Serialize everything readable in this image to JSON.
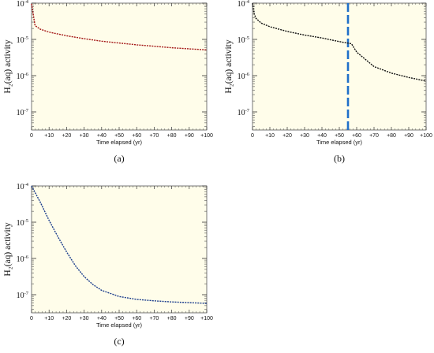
{
  "chart_data": [
    {
      "type": "line",
      "panel_label": "(a)",
      "xlabel": "Time elapsed (yr)",
      "ylabel": "H₂(aq) activity",
      "xlim": [
        0,
        100
      ],
      "ylim_log10": [
        -7.5,
        -4
      ],
      "scale_y": "log",
      "background": "#fffdea",
      "x_ticks": [
        0,
        10,
        20,
        30,
        40,
        50,
        60,
        70,
        80,
        90,
        100
      ],
      "x_tick_labels": [
        "0",
        "+10",
        "+20",
        "+30",
        "+40",
        "+50",
        "+60",
        "+70",
        "+80",
        "+90",
        "+100"
      ],
      "y_ticks": [
        -4,
        -5,
        -6,
        -7
      ],
      "series": [
        {
          "color": "#a31515",
          "dash": "dotted",
          "x": [
            0,
            2,
            5,
            10,
            20,
            30,
            40,
            50,
            60,
            70,
            80,
            90,
            100
          ],
          "log10_y": [
            -4.02,
            -4.62,
            -4.72,
            -4.8,
            -4.9,
            -4.98,
            -5.05,
            -5.1,
            -5.15,
            -5.19,
            -5.23,
            -5.26,
            -5.29
          ]
        }
      ]
    },
    {
      "type": "line",
      "panel_label": "(b)",
      "xlabel": "Time elapsed (yr)",
      "ylabel": "H₂(aq) activity",
      "xlim": [
        0,
        100
      ],
      "ylim_log10": [
        -7.5,
        -4
      ],
      "scale_y": "log",
      "background": "#fffdea",
      "x_ticks": [
        0,
        10,
        20,
        30,
        40,
        50,
        60,
        70,
        80,
        90,
        100
      ],
      "x_tick_labels": [
        "0",
        "+10",
        "+20",
        "+30",
        "+40",
        "+50",
        "+60",
        "+70",
        "+80",
        "+90",
        "+100"
      ],
      "y_ticks": [
        -4,
        -5,
        -6,
        -7
      ],
      "marker_line": {
        "x": 55,
        "color": "#1f6fc9"
      },
      "series": [
        {
          "color": "#111111",
          "dash": "dotted",
          "x": [
            0,
            1,
            2,
            5,
            10,
            20,
            30,
            40,
            50,
            57,
            60,
            70,
            80,
            90,
            100
          ],
          "log10_y": [
            -4.0,
            -4.3,
            -4.42,
            -4.55,
            -4.65,
            -4.78,
            -4.88,
            -4.96,
            -5.06,
            -5.12,
            -5.35,
            -5.75,
            -5.93,
            -6.05,
            -6.15
          ]
        }
      ]
    },
    {
      "type": "line",
      "panel_label": "(c)",
      "xlabel": "Time elapsed (yr)",
      "ylabel": "H₂(aq) activity",
      "xlim": [
        0,
        100
      ],
      "ylim_log10": [
        -7.5,
        -4
      ],
      "scale_y": "log",
      "background": "#fffdea",
      "x_ticks": [
        0,
        10,
        20,
        30,
        40,
        50,
        60,
        70,
        80,
        90,
        100
      ],
      "x_tick_labels": [
        "0",
        "+10",
        "+20",
        "+30",
        "+40",
        "+50",
        "+60",
        "+70",
        "+80",
        "+90",
        "+100"
      ],
      "y_ticks": [
        -4,
        -5,
        -6,
        -7
      ],
      "series": [
        {
          "color": "#1a3c8c",
          "dash": "dotted",
          "x": [
            0,
            5,
            10,
            15,
            20,
            25,
            30,
            35,
            40,
            50,
            60,
            70,
            80,
            90,
            100
          ],
          "log10_y": [
            -4.0,
            -4.45,
            -4.95,
            -5.4,
            -5.82,
            -6.2,
            -6.5,
            -6.72,
            -6.88,
            -7.05,
            -7.13,
            -7.17,
            -7.2,
            -7.22,
            -7.24
          ]
        }
      ]
    }
  ]
}
